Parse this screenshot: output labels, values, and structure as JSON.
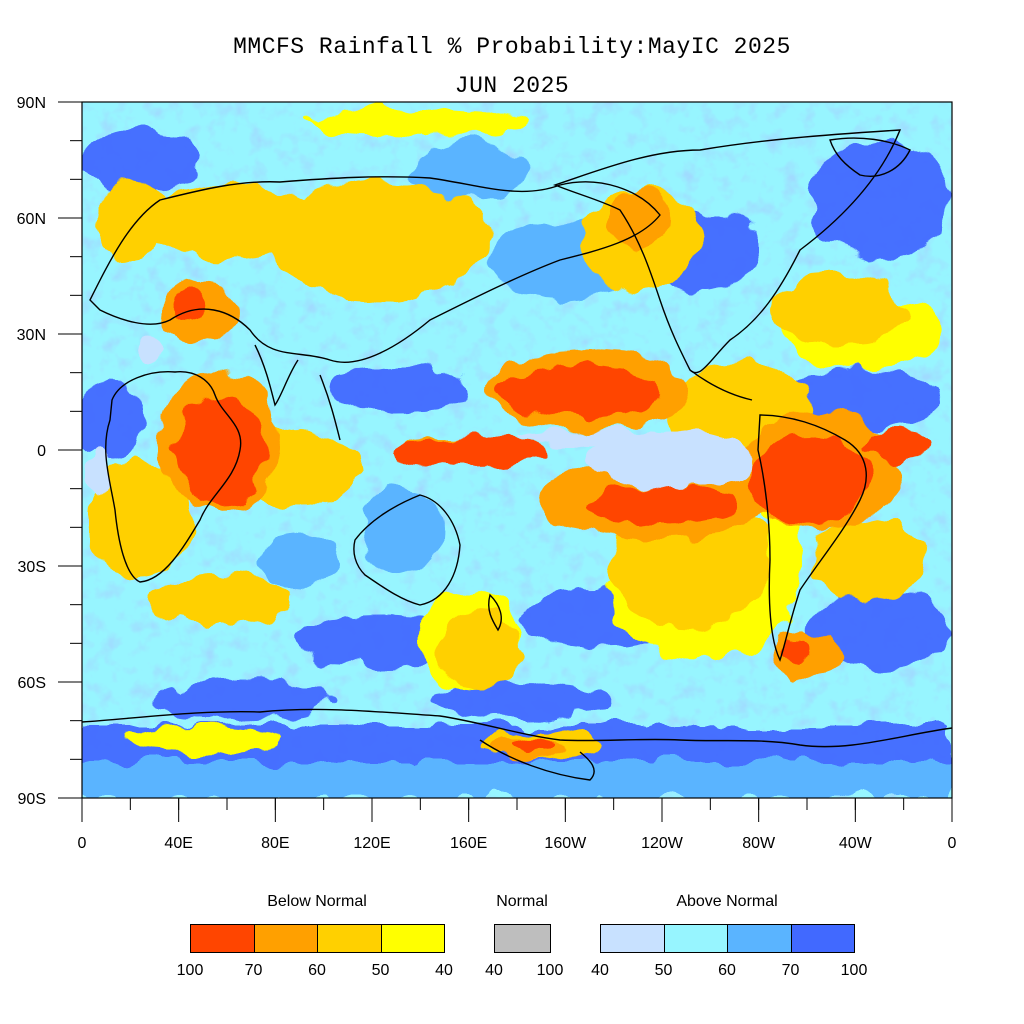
{
  "title": {
    "line1": "MMCFS Rainfall % Probability:MayIC 2025",
    "line2": "JUN 2025"
  },
  "map": {
    "lat_labels": [
      "90N",
      "60N",
      "30N",
      "0",
      "30S",
      "60S",
      "90S"
    ],
    "lon_labels": [
      "0",
      "40E",
      "80E",
      "120E",
      "160E",
      "160W",
      "120W",
      "80W",
      "40W",
      "0"
    ],
    "colors": {
      "below_100_70": "#ff4500",
      "below_70_60": "#ffa000",
      "below_60_50": "#ffd000",
      "below_50_40": "#ffff00",
      "normal": "#bebebe",
      "above_40_50": "#c8e1ff",
      "above_50_60": "#97f5ff",
      "above_60_70": "#5ab4ff",
      "above_70_100": "#4169ff"
    }
  },
  "legend": {
    "below": {
      "label": "Below Normal",
      "ticks": [
        "100",
        "70",
        "60",
        "50",
        "40"
      ],
      "colors": [
        "#ff4500",
        "#ffa000",
        "#ffd000",
        "#ffff00"
      ]
    },
    "normal": {
      "label": "Normal",
      "ticks": [
        "40",
        "100"
      ],
      "color": "#bebebe"
    },
    "above": {
      "label": "Above Normal",
      "ticks": [
        "40",
        "50",
        "60",
        "70",
        "100"
      ],
      "colors": [
        "#c8e1ff",
        "#97f5ff",
        "#5ab4ff",
        "#4169ff"
      ]
    }
  }
}
